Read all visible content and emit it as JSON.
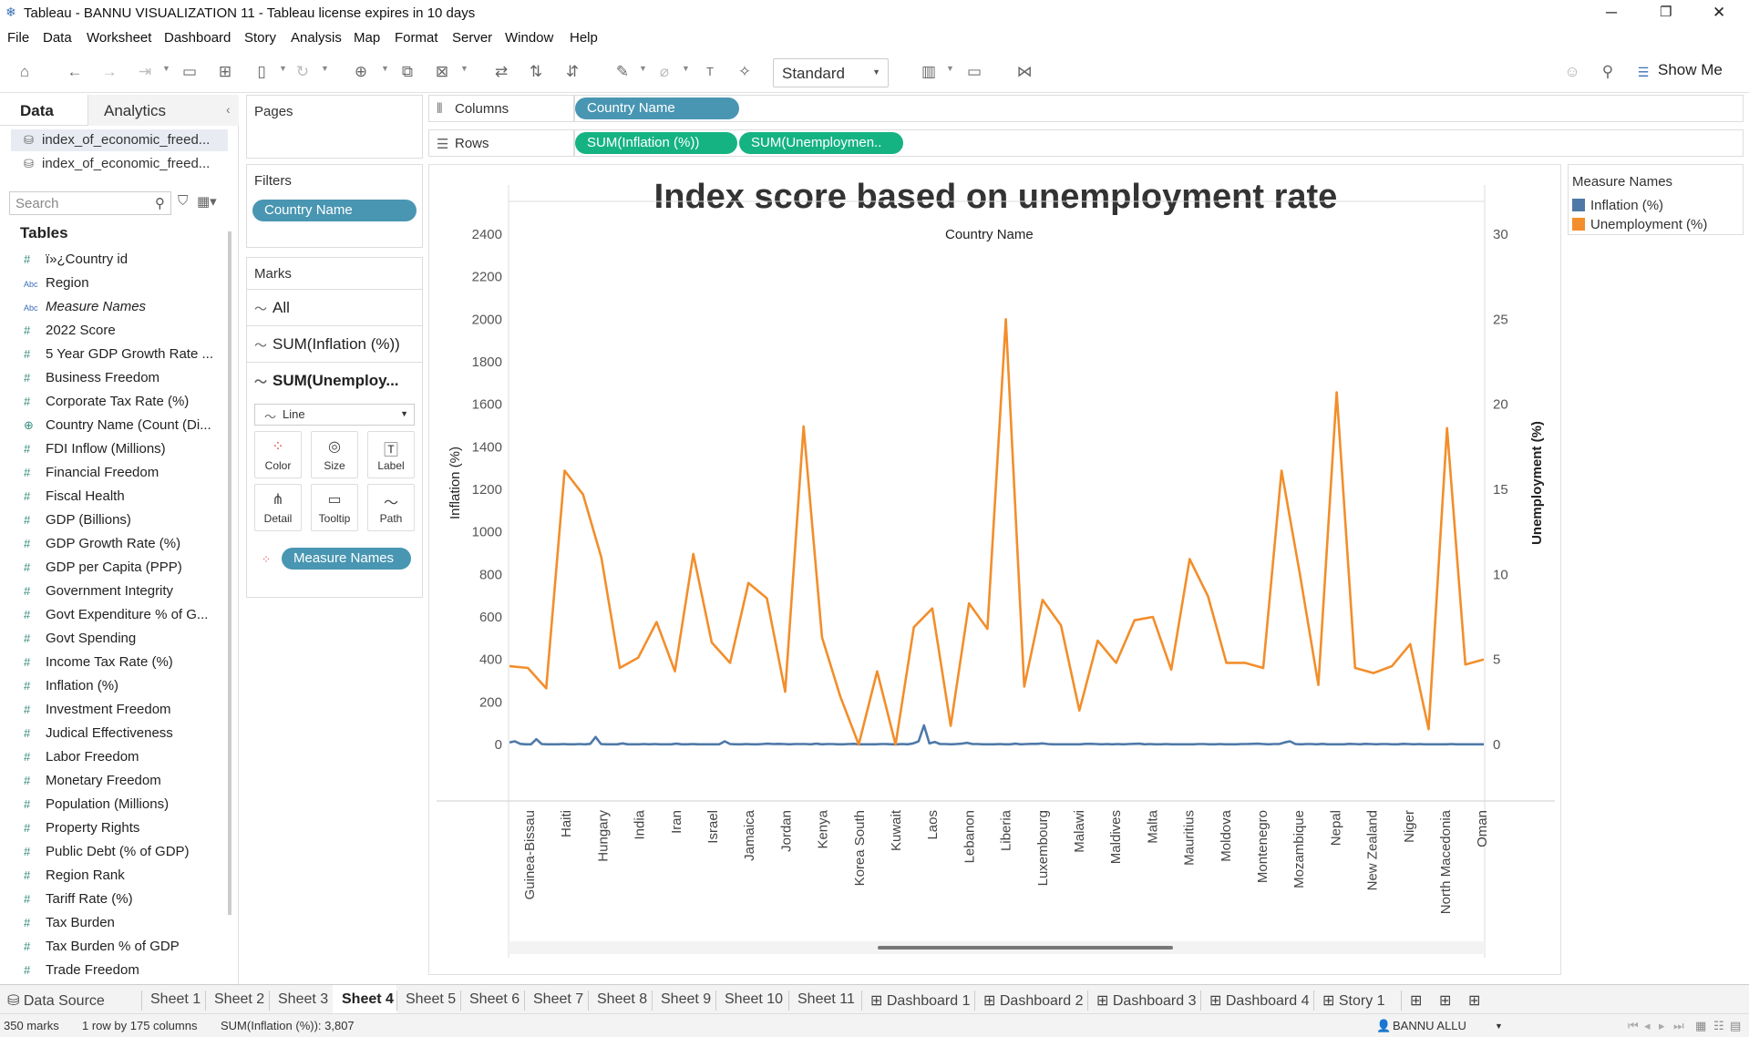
{
  "window": {
    "title": "Tableau - BANNU VISUALIZATION 11 - Tableau license expires in 10 days"
  },
  "menu": [
    "File",
    "Data",
    "Worksheet",
    "Dashboard",
    "Story",
    "Analysis",
    "Map",
    "Format",
    "Server",
    "Window",
    "Help"
  ],
  "toolbar": {
    "fit": "Standard",
    "show_me": "Show Me"
  },
  "data_pane": {
    "tab_data": "Data",
    "tab_analytics": "Analytics",
    "sources": [
      "index_of_economic_freed...",
      "index_of_economic_freed..."
    ],
    "search_placeholder": "Search",
    "tables_header": "Tables",
    "fields": [
      {
        "name": "ï»¿Country id",
        "type": "#"
      },
      {
        "name": "Region",
        "type": "Abc"
      },
      {
        "name": "Measure Names",
        "type": "Abc",
        "italic": true
      },
      {
        "name": "2022 Score",
        "type": "#"
      },
      {
        "name": "5 Year GDP Growth Rate ...",
        "type": "#"
      },
      {
        "name": "Business Freedom",
        "type": "#"
      },
      {
        "name": "Corporate Tax Rate (%)",
        "type": "#"
      },
      {
        "name": "Country Name (Count (Di...",
        "type": "⊕"
      },
      {
        "name": "FDI Inflow (Millions)",
        "type": "#"
      },
      {
        "name": "Financial Freedom",
        "type": "#"
      },
      {
        "name": "Fiscal Health",
        "type": "#"
      },
      {
        "name": "GDP (Billions)",
        "type": "#"
      },
      {
        "name": "GDP Growth Rate (%)",
        "type": "#"
      },
      {
        "name": "GDP per Capita (PPP)",
        "type": "#"
      },
      {
        "name": "Government Integrity",
        "type": "#"
      },
      {
        "name": "Govt Expenditure % of G...",
        "type": "#"
      },
      {
        "name": "Govt Spending",
        "type": "#"
      },
      {
        "name": "Income Tax Rate (%)",
        "type": "#"
      },
      {
        "name": "Inflation (%)",
        "type": "#"
      },
      {
        "name": "Investment Freedom",
        "type": "#"
      },
      {
        "name": "Judical Effectiveness",
        "type": "#"
      },
      {
        "name": "Labor Freedom",
        "type": "#"
      },
      {
        "name": "Monetary Freedom",
        "type": "#"
      },
      {
        "name": "Population (Millions)",
        "type": "#"
      },
      {
        "name": "Property Rights",
        "type": "#"
      },
      {
        "name": "Public Debt (% of GDP)",
        "type": "#"
      },
      {
        "name": "Region Rank",
        "type": "#"
      },
      {
        "name": "Tariff Rate (%)",
        "type": "#"
      },
      {
        "name": "Tax Burden",
        "type": "#"
      },
      {
        "name": "Tax Burden % of GDP",
        "type": "#"
      },
      {
        "name": "Trade Freedom",
        "type": "#"
      }
    ]
  },
  "pages": {
    "label": "Pages"
  },
  "filters": {
    "label": "Filters",
    "pill": "Country Name"
  },
  "marks": {
    "label": "Marks",
    "all": "All",
    "card1": "SUM(Inflation (%))",
    "card2": "SUM(Unemploy...",
    "mark_type": "Line",
    "buttons": [
      "Color",
      "Size",
      "Label",
      "Detail",
      "Tooltip",
      "Path"
    ],
    "color_pill": "Measure Names"
  },
  "shelves": {
    "columns_label": "Columns",
    "columns_pill": "Country Name",
    "rows_label": "Rows",
    "rows_pill1": "SUM(Inflation (%))",
    "rows_pill2": "SUM(Unemploymen.."
  },
  "legend": {
    "title": "Measure Names",
    "items": [
      {
        "name": "Inflation (%)",
        "color": "#4e79a7"
      },
      {
        "name": "Unemployment (%)",
        "color": "#f28e2b"
      }
    ]
  },
  "chart_data": {
    "type": "line",
    "title": "Index score based on unemployment rate",
    "xlabel": "Country Name",
    "ylabel_left": "Inflation (%)",
    "ylabel_right": "Unemployment (%)",
    "y_left_ticks": [
      0,
      200,
      400,
      600,
      800,
      1000,
      1200,
      1400,
      1600,
      1800,
      2000,
      2200,
      2400
    ],
    "y_right_ticks": [
      0,
      5,
      10,
      15,
      20,
      25,
      30
    ],
    "ylim_left": [
      -60,
      2520
    ],
    "ylim_right": [
      -0.75,
      31.5
    ],
    "x_tick_labels": [
      "Guinea-Bissau",
      "Haiti",
      "Hungary",
      "India",
      "Iran",
      "Israel",
      "Jamaica",
      "Jordan",
      "Kenya",
      "Korea South",
      "Kuwait",
      "Laos",
      "Lebanon",
      "Liberia",
      "Luxembourg",
      "Malawi",
      "Maldives",
      "Malta",
      "Mauritius",
      "Moldova",
      "Montenegro",
      "Mozambique",
      "Nepal",
      "New Zealand",
      "Niger",
      "North Macedonia",
      "Oman"
    ],
    "series": [
      {
        "name": "Inflation (%)",
        "color": "#4e79a7",
        "axis": "left",
        "values": [
          10,
          15,
          3,
          1,
          1,
          25,
          2,
          1,
          1,
          1,
          2,
          1,
          1,
          2,
          1,
          3,
          35,
          2,
          1,
          1,
          1,
          5,
          1,
          1,
          1,
          2,
          1,
          2,
          1,
          1,
          1,
          4,
          1,
          1,
          2,
          1,
          1,
          1,
          1,
          1,
          15,
          2,
          1,
          1,
          2,
          1,
          1,
          2,
          4,
          2,
          3,
          2,
          1,
          2,
          2,
          2,
          1,
          4,
          1,
          2,
          2,
          1,
          1,
          2,
          3,
          1,
          1,
          1,
          1,
          2,
          2,
          1,
          1,
          2,
          1,
          5,
          15,
          90,
          5,
          12,
          2,
          2,
          1,
          2,
          4,
          8,
          2,
          2,
          1,
          1,
          1,
          2,
          1,
          1,
          4,
          1,
          2,
          3,
          3,
          5,
          2,
          1,
          1,
          1,
          1,
          1,
          1,
          3,
          3,
          2,
          1,
          2,
          1,
          2,
          1,
          2,
          3,
          4,
          1,
          2,
          1,
          1,
          2,
          1,
          1,
          1,
          1,
          1,
          2,
          2,
          1,
          1,
          2,
          1,
          1,
          1,
          2,
          2,
          3,
          4,
          2,
          1,
          2,
          2,
          10,
          15,
          2,
          1,
          2,
          2,
          1,
          3,
          1,
          1,
          1,
          1,
          3,
          2,
          1,
          3,
          2,
          1,
          2,
          2,
          1,
          1,
          3,
          2,
          1,
          2,
          1,
          1,
          1,
          1,
          1,
          2,
          1,
          1,
          1,
          1,
          1,
          1
        ]
      },
      {
        "name": "Unemployment (%)",
        "color": "#f28e2b",
        "axis": "right",
        "values": [
          4.6,
          4.5,
          3.3,
          16.1,
          14.7,
          11.0,
          4.5,
          5.1,
          7.2,
          4.3,
          11.2,
          6.0,
          4.8,
          9.5,
          8.6,
          3.1,
          18.7,
          6.3,
          2.8,
          0.0,
          4.3,
          0.0,
          6.9,
          8.0,
          1.1,
          8.3,
          6.8,
          25.0,
          3.4,
          8.5,
          7.0,
          2.0,
          6.1,
          4.8,
          7.3,
          7.5,
          4.4,
          10.9,
          8.7,
          4.8,
          4.8,
          4.5,
          16.1,
          10.0,
          3.5,
          20.7,
          4.5,
          4.2,
          4.6,
          5.9,
          0.9,
          18.6,
          4.7,
          5.0
        ]
      }
    ]
  },
  "sheet_tabs": [
    "Data Source",
    "Sheet 1",
    "Sheet 2",
    "Sheet 3",
    "Sheet 4",
    "Sheet 5",
    "Sheet 6",
    "Sheet 7",
    "Sheet 8",
    "Sheet 9",
    "Sheet 10",
    "Sheet 11",
    "Dashboard 1",
    "Dashboard 2",
    "Dashboard 3",
    "Dashboard 4",
    "Story 1"
  ],
  "active_sheet": "Sheet 4",
  "status": {
    "marks": "350 marks",
    "dims": "1 row by 175 columns",
    "sum": "SUM(Inflation (%)): 3,807",
    "user": "BANNU ALLU"
  }
}
